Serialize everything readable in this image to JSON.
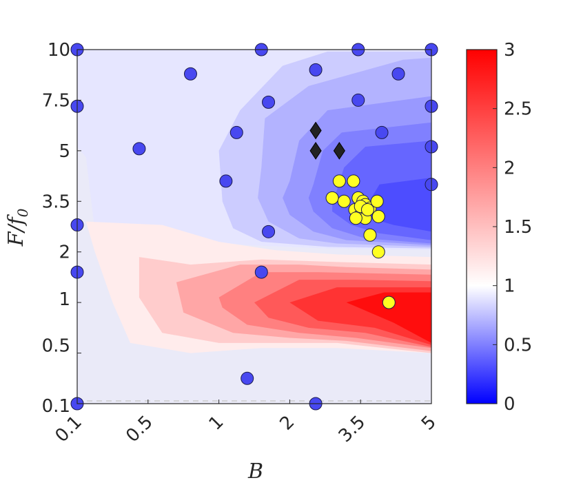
{
  "chart_data": {
    "type": "heatmap",
    "title": "",
    "xlabel": "B",
    "ylabel": "F/f",
    "ylabel_subscript": "0",
    "xlim": [
      0.1,
      5
    ],
    "ylim": [
      0.1,
      10
    ],
    "x_ticks": [
      {
        "value": 0.1,
        "label": "0.1"
      },
      {
        "value": 0.5,
        "label": "0.5"
      },
      {
        "value": 1,
        "label": "1"
      },
      {
        "value": 2,
        "label": "2"
      },
      {
        "value": 3.5,
        "label": "3.5"
      },
      {
        "value": 5,
        "label": "5"
      }
    ],
    "y_ticks": [
      {
        "value": 0.1,
        "label": "0.1"
      },
      {
        "value": 0.5,
        "label": "0.5"
      },
      {
        "value": 1,
        "label": "1"
      },
      {
        "value": 2,
        "label": "2"
      },
      {
        "value": 3.5,
        "label": "3.5"
      },
      {
        "value": 5,
        "label": "5"
      },
      {
        "value": 7.5,
        "label": "7.5"
      },
      {
        "value": 10,
        "label": "10"
      }
    ],
    "colorbar": {
      "range": [
        0,
        3
      ],
      "ticks": [
        {
          "value": 0,
          "label": "0"
        },
        {
          "value": 0.5,
          "label": "0.5"
        },
        {
          "value": 1,
          "label": "1"
        },
        {
          "value": 1.5,
          "label": "1.5"
        },
        {
          "value": 2,
          "label": "2"
        },
        {
          "value": 2.5,
          "label": "2.5"
        },
        {
          "value": 3,
          "label": "3"
        }
      ],
      "colors": {
        "low": "#0000ff",
        "mid": "#ffffff",
        "high": "#ff0000"
      }
    },
    "grid": false,
    "contour_regions": [
      {
        "level": 0.9,
        "points": [
          [
            0.1,
            10
          ],
          [
            5,
            10
          ],
          [
            5,
            2.05
          ],
          [
            2.8,
            2.1
          ],
          [
            1.4,
            2.2
          ],
          [
            0.7,
            2.4
          ],
          [
            0.2,
            2.6
          ],
          [
            0.15,
            4.8
          ],
          [
            0.1,
            5.2
          ]
        ]
      },
      {
        "level": 0.8,
        "points": [
          [
            1.0,
            5.0
          ],
          [
            1.3,
            7.0
          ],
          [
            1.9,
            9.2
          ],
          [
            2.8,
            9.9
          ],
          [
            5,
            9.9
          ],
          [
            5,
            2.1
          ],
          [
            2.8,
            2.15
          ],
          [
            1.6,
            2.3
          ],
          [
            1.2,
            2.7
          ],
          [
            1.05,
            3.5
          ]
        ]
      },
      {
        "level": 0.7,
        "points": [
          [
            1.6,
            4.5
          ],
          [
            1.65,
            6.6
          ],
          [
            2.4,
            8.2
          ],
          [
            4.4,
            9.5
          ],
          [
            5,
            9.6
          ],
          [
            5,
            2.15
          ],
          [
            3.0,
            2.25
          ],
          [
            2.2,
            2.4
          ],
          [
            1.7,
            2.9
          ],
          [
            1.55,
            3.6
          ]
        ]
      },
      {
        "level": 0.6,
        "points": [
          [
            2.0,
            4.1
          ],
          [
            2.2,
            5.5
          ],
          [
            2.8,
            7.0
          ],
          [
            5,
            7.7
          ],
          [
            5,
            2.2
          ],
          [
            3.2,
            2.35
          ],
          [
            2.5,
            2.6
          ],
          [
            2.0,
            3.1
          ],
          [
            1.9,
            3.6
          ]
        ]
      },
      {
        "level": 0.5,
        "points": [
          [
            2.5,
            4.0
          ],
          [
            2.7,
            5.0
          ],
          [
            3.1,
            5.9
          ],
          [
            5,
            6.4
          ],
          [
            5,
            2.25
          ],
          [
            3.6,
            2.4
          ],
          [
            2.9,
            2.7
          ],
          [
            2.5,
            3.2
          ],
          [
            2.4,
            3.6
          ]
        ]
      },
      {
        "level": 0.4,
        "points": [
          [
            2.9,
            3.4
          ],
          [
            3.15,
            4.5
          ],
          [
            3.6,
            5.2
          ],
          [
            5,
            5.5
          ],
          [
            5,
            2.35
          ],
          [
            3.9,
            2.55
          ],
          [
            3.3,
            2.8
          ],
          [
            2.9,
            3.2
          ]
        ]
      },
      {
        "level": 0.3,
        "points": [
          [
            3.6,
            3.3
          ],
          [
            3.9,
            4.0
          ],
          [
            5,
            4.2
          ],
          [
            5,
            2.6
          ],
          [
            4.2,
            2.8
          ],
          [
            3.7,
            3.0
          ]
        ]
      },
      {
        "level": 1.15,
        "points": [
          [
            0.15,
            2.9
          ],
          [
            0.6,
            2.8
          ],
          [
            1.0,
            2.3
          ],
          [
            1.8,
            2.05
          ],
          [
            3.0,
            1.95
          ],
          [
            5,
            1.9
          ],
          [
            5,
            0.5
          ],
          [
            3.0,
            0.55
          ],
          [
            1.6,
            0.55
          ],
          [
            0.8,
            0.5
          ],
          [
            0.4,
            0.6
          ],
          [
            0.3,
            1.0
          ],
          [
            0.2,
            2.0
          ]
        ]
      },
      {
        "level": 1.4,
        "points": [
          [
            0.45,
            1.9
          ],
          [
            0.8,
            1.75
          ],
          [
            1.6,
            1.85
          ],
          [
            3.0,
            1.8
          ],
          [
            5,
            1.75
          ],
          [
            5,
            0.5
          ],
          [
            3.0,
            0.6
          ],
          [
            1.8,
            0.6
          ],
          [
            1.0,
            0.6
          ],
          [
            0.6,
            0.7
          ],
          [
            0.45,
            1.1
          ]
        ]
      },
      {
        "level": 1.7,
        "points": [
          [
            0.7,
            1.4
          ],
          [
            1.3,
            1.75
          ],
          [
            2.2,
            1.75
          ],
          [
            3.2,
            1.7
          ],
          [
            5,
            1.65
          ],
          [
            5,
            0.52
          ],
          [
            3.2,
            0.62
          ],
          [
            2.0,
            0.65
          ],
          [
            1.2,
            0.7
          ],
          [
            0.75,
            0.9
          ]
        ]
      },
      {
        "level": 2.0,
        "points": [
          [
            1.0,
            1.1
          ],
          [
            1.6,
            1.6
          ],
          [
            2.6,
            1.6
          ],
          [
            5,
            1.55
          ],
          [
            5,
            0.55
          ],
          [
            3.4,
            0.65
          ],
          [
            2.2,
            0.7
          ],
          [
            1.4,
            0.78
          ],
          [
            1.05,
            0.95
          ]
        ]
      },
      {
        "level": 2.3,
        "points": [
          [
            1.5,
            1.0
          ],
          [
            2.2,
            1.45
          ],
          [
            3.4,
            1.45
          ],
          [
            5,
            1.42
          ],
          [
            5,
            0.56
          ],
          [
            3.6,
            0.7
          ],
          [
            2.4,
            0.75
          ],
          [
            1.7,
            0.85
          ]
        ]
      },
      {
        "level": 2.6,
        "points": [
          [
            2.0,
            1.0
          ],
          [
            3.0,
            1.3
          ],
          [
            5,
            1.3
          ],
          [
            5,
            0.58
          ],
          [
            3.8,
            0.75
          ],
          [
            2.6,
            0.82
          ]
        ]
      },
      {
        "level": 2.9,
        "points": [
          [
            3.2,
            1.0
          ],
          [
            4.0,
            1.2
          ],
          [
            5,
            1.2
          ],
          [
            5,
            0.6
          ],
          [
            4.2,
            0.8
          ]
        ]
      }
    ],
    "series": [
      {
        "marker": "circle",
        "color": "#4848f0",
        "points": [
          [
            0.1,
            10
          ],
          [
            1.6,
            10
          ],
          [
            3.45,
            10
          ],
          [
            5,
            10
          ],
          [
            0.8,
            8.8
          ],
          [
            2.55,
            9.0
          ],
          [
            4.3,
            8.8
          ],
          [
            0.1,
            7.2
          ],
          [
            1.7,
            7.4
          ],
          [
            3.45,
            7.5
          ],
          [
            1.25,
            5.9
          ],
          [
            3.95,
            5.9
          ],
          [
            0.45,
            5.1
          ],
          [
            5,
            5.2
          ],
          [
            1.1,
            4.1
          ],
          [
            5,
            4.0
          ],
          [
            0.1,
            2.8
          ],
          [
            1.7,
            2.6
          ],
          [
            0.1,
            1.6
          ],
          [
            1.6,
            1.6
          ],
          [
            1.4,
            0.3
          ],
          [
            0.1,
            0.1
          ],
          [
            2.55,
            0.1
          ],
          [
            5,
            7.2
          ]
        ]
      },
      {
        "marker": "circle",
        "color": "#ffff22",
        "points": [
          [
            3.05,
            4.1
          ],
          [
            3.35,
            4.1
          ],
          [
            2.9,
            3.6
          ],
          [
            3.15,
            3.5
          ],
          [
            3.45,
            3.6
          ],
          [
            3.55,
            3.5
          ],
          [
            3.6,
            3.4
          ],
          [
            3.7,
            3.3
          ],
          [
            3.85,
            3.5
          ],
          [
            3.38,
            3.25
          ],
          [
            3.5,
            3.1
          ],
          [
            3.58,
            3.2
          ],
          [
            3.6,
            3.0
          ],
          [
            3.4,
            3.0
          ],
          [
            3.5,
            3.35
          ],
          [
            3.65,
            3.25
          ],
          [
            3.88,
            3.05
          ],
          [
            3.7,
            2.5
          ],
          [
            3.88,
            2.0
          ],
          [
            4.1,
            1.0
          ]
        ]
      },
      {
        "marker": "diamond",
        "color": "#222222",
        "points": [
          [
            2.55,
            6.0
          ],
          [
            2.55,
            5.0
          ],
          [
            3.05,
            5.0
          ]
        ]
      }
    ],
    "reference_line": {
      "y": 0.1,
      "style": "dashed",
      "color": "#cccccc"
    }
  }
}
